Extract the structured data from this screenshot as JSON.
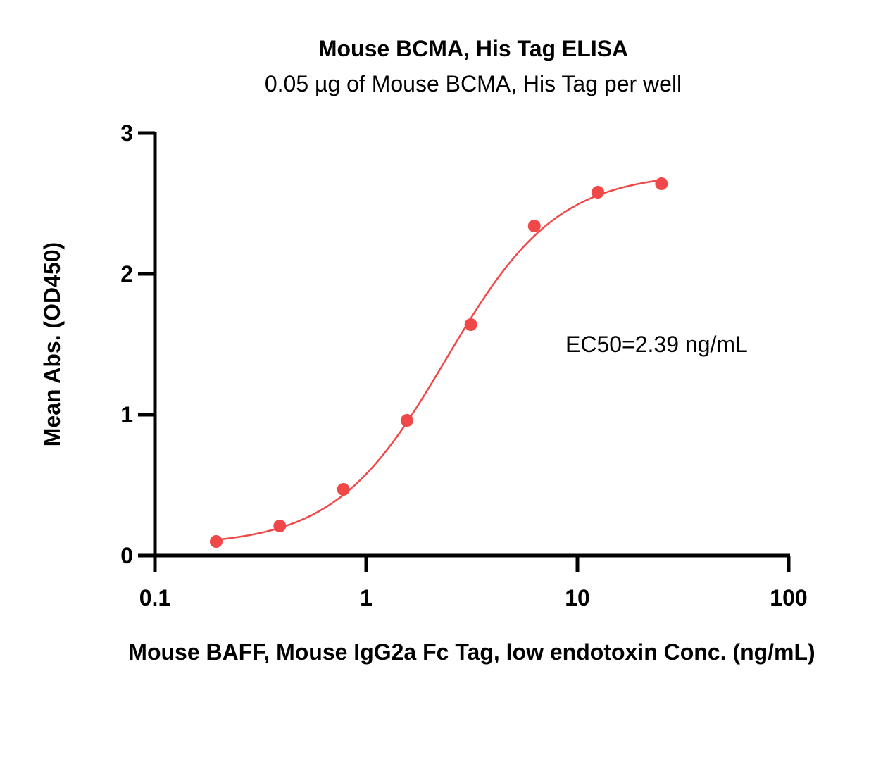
{
  "chart_data": {
    "type": "scatter",
    "title": "Mouse BCMA, His Tag ELISA",
    "subtitle": "0.05 µg of Mouse BCMA, His Tag per well",
    "xlabel": "Mouse BAFF, Mouse IgG2a Fc Tag, low endotoxin Conc. (ng/mL)",
    "ylabel": "Mean Abs. (OD450)",
    "xscale": "log",
    "xlim": [
      0.1,
      100
    ],
    "ylim": [
      0,
      3
    ],
    "xticks": [
      "0.1",
      "1",
      "10",
      "100"
    ],
    "xtick_values": [
      0.1,
      1,
      10,
      100
    ],
    "yticks": [
      "0",
      "1",
      "2",
      "3"
    ],
    "ytick_values": [
      0,
      1,
      2,
      3
    ],
    "grid": false,
    "annotation": "EC50=2.39 ng/mL",
    "series": [
      {
        "color": "#f04848",
        "x": [
          0.195,
          0.39,
          0.78,
          1.56,
          3.13,
          6.25,
          12.5,
          25
        ],
        "y": [
          0.1,
          0.21,
          0.47,
          0.96,
          1.64,
          2.34,
          2.58,
          2.64
        ],
        "fit": {
          "model": "4PL",
          "bottom": 0.07,
          "top": 2.72,
          "ec50": 2.39,
          "hill": 1.65
        }
      }
    ]
  }
}
